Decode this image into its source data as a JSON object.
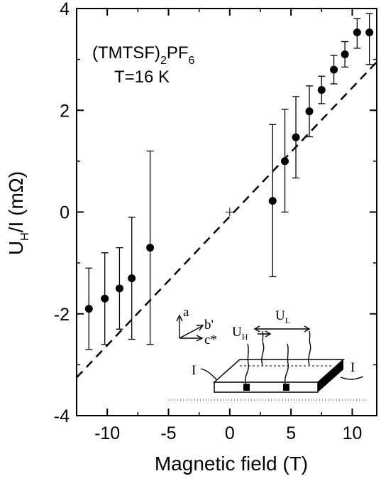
{
  "chart_data": {
    "type": "scatter",
    "title": "",
    "xlabel": "Magnetic field (T)",
    "ylabel": {
      "main": "U",
      "sub": "H",
      "rest": "/I  (mΩ)"
    },
    "xlim": [
      -12.5,
      12
    ],
    "ylim": [
      -4,
      4
    ],
    "x_ticks": [
      -10,
      -5,
      0,
      5,
      10
    ],
    "x_tick_labels": [
      "-10",
      "-5",
      "0",
      "5",
      "10"
    ],
    "y_ticks": [
      -4,
      -2,
      0,
      2,
      4
    ],
    "y_tick_labels": [
      "-4",
      "-2",
      "0",
      "2",
      "4"
    ],
    "grid": false,
    "series": [
      {
        "marker": "filled-circle",
        "points": [
          {
            "x": -11.5,
            "y": -1.9,
            "err_low": -2.7,
            "err_high": -1.1
          },
          {
            "x": -10.2,
            "y": -1.7,
            "err_low": -2.6,
            "err_high": -0.8
          },
          {
            "x": -9.0,
            "y": -1.5,
            "err_low": -2.3,
            "err_high": -0.7
          },
          {
            "x": -8.0,
            "y": -1.3,
            "err_low": -2.5,
            "err_high": -0.1
          },
          {
            "x": -6.5,
            "y": -0.7,
            "err_low": -2.6,
            "err_high": 1.2
          },
          {
            "x": 3.5,
            "y": 0.22,
            "err_low": -1.27,
            "err_high": 1.72
          },
          {
            "x": 4.5,
            "y": 1.0,
            "err_low": 0.0,
            "err_high": 2.02
          },
          {
            "x": 5.4,
            "y": 1.47,
            "err_low": 0.67,
            "err_high": 2.27
          },
          {
            "x": 6.5,
            "y": 1.98,
            "err_low": 1.48,
            "err_high": 2.48
          },
          {
            "x": 7.5,
            "y": 2.4,
            "err_low": 2.13,
            "err_high": 2.67
          },
          {
            "x": 8.5,
            "y": 2.8,
            "err_low": 2.52,
            "err_high": 3.08
          },
          {
            "x": 9.4,
            "y": 3.1,
            "err_low": 2.85,
            "err_high": 3.35
          },
          {
            "x": 10.4,
            "y": 3.53,
            "err_low": 3.22,
            "err_high": 3.8
          },
          {
            "x": 11.4,
            "y": 3.53,
            "err_low": 2.9,
            "err_high": 3.9
          }
        ]
      }
    ],
    "fit_line": {
      "style": "dashed",
      "x": [
        -12.5,
        12
      ],
      "y": [
        -3.25,
        2.95
      ]
    },
    "origin_marker": {
      "x": 0,
      "y": 0,
      "style": "plus"
    },
    "annotations": {
      "compound_pre": "(TMTSF)",
      "compound_sub": "2",
      "compound_mid": "PF",
      "compound_sub2": "6",
      "temperature": "T=16 K"
    },
    "inset": {
      "axis_a": "a",
      "axis_b": "b'",
      "axis_c": "c*",
      "voltage_hall_main": "U",
      "voltage_hall_sub": "H",
      "voltage_long_main": "U",
      "voltage_long_sub": "L",
      "current_left": "I",
      "current_right": "I"
    }
  }
}
